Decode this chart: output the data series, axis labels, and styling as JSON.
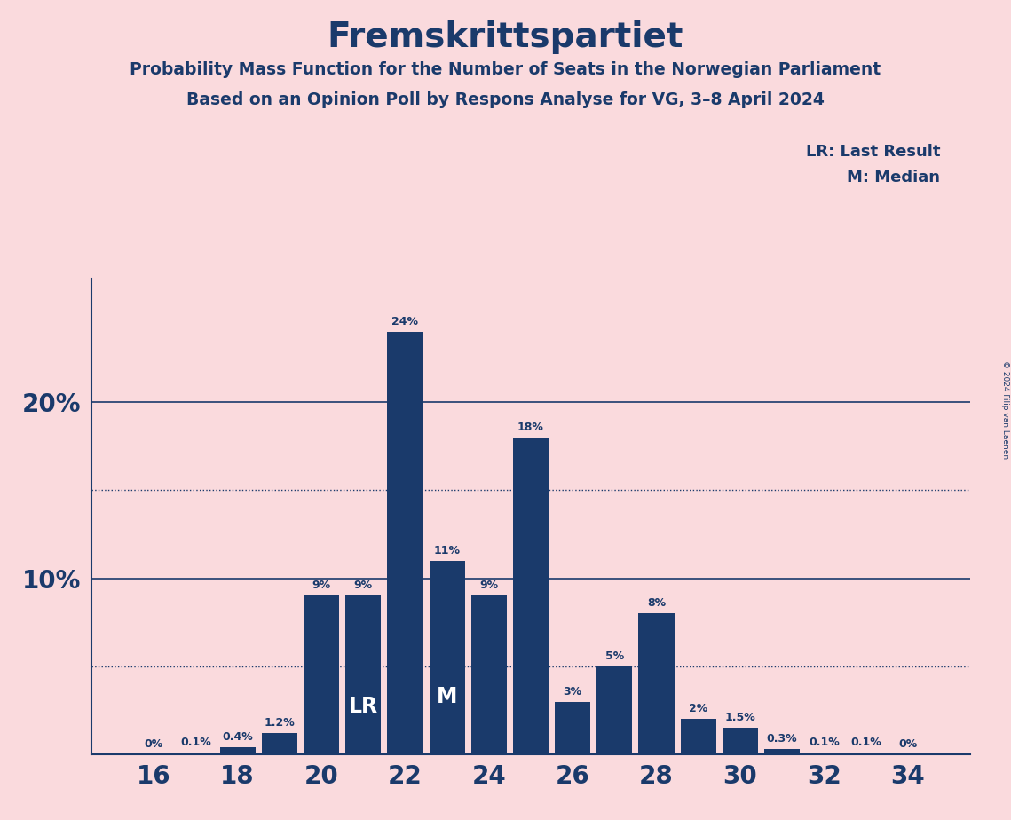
{
  "title": "Fremskrittspartiet",
  "subtitle1": "Probability Mass Function for the Number of Seats in the Norwegian Parliament",
  "subtitle2": "Based on an Opinion Poll by Respons Analyse for VG, 3–8 April 2024",
  "copyright": "© 2024 Filip van Laenen",
  "legend_lr": "LR: Last Result",
  "legend_m": "M: Median",
  "background_color": "#fadadd",
  "bar_color": "#1a3a6b",
  "text_color": "#1a3a6b",
  "seats": [
    16,
    17,
    18,
    19,
    20,
    21,
    22,
    23,
    24,
    25,
    26,
    27,
    28,
    29,
    30,
    31,
    32,
    33,
    34
  ],
  "probs": [
    0.0,
    0.1,
    0.4,
    1.2,
    9.0,
    9.0,
    24.0,
    11.0,
    9.0,
    18.0,
    3.0,
    5.0,
    8.0,
    2.0,
    1.5,
    0.3,
    0.1,
    0.1,
    0.0
  ],
  "prob_labels": [
    "0%",
    "0.1%",
    "0.4%",
    "1.2%",
    "9%",
    "9%",
    "24%",
    "11%",
    "9%",
    "18%",
    "3%",
    "5%",
    "8%",
    "2%",
    "1.5%",
    "0.3%",
    "0.1%",
    "0.1%",
    "0%"
  ],
  "lr_seat": 21,
  "median_seat": 23,
  "dotted_lines": [
    5.0,
    15.0
  ],
  "solid_lines": [
    10.0,
    20.0
  ],
  "xtick_positions": [
    16,
    18,
    20,
    22,
    24,
    26,
    28,
    30,
    32,
    34
  ],
  "xlim": [
    14.5,
    35.5
  ],
  "ylim": [
    0,
    27
  ],
  "bar_width": 0.85
}
